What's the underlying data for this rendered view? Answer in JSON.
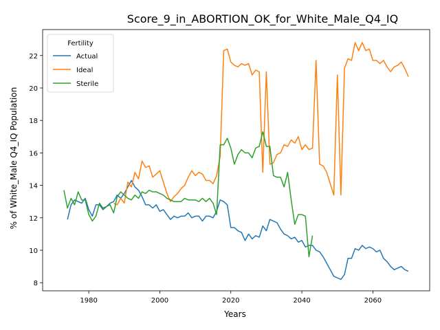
{
  "chart_data": {
    "type": "line",
    "title": "Score_9_in_ABORTION_OK_for_White_Male_Q4_IQ",
    "xlabel": "Years",
    "ylabel": "% of White_Male Q4_IQ Population",
    "xlim": [
      1967,
      2076
    ],
    "ylim": [
      7.5,
      23.6
    ],
    "xticks": [
      1980,
      2000,
      2020,
      2040,
      2060
    ],
    "yticks": [
      8,
      10,
      12,
      14,
      16,
      18,
      20,
      22
    ],
    "grid": false,
    "legend": {
      "title": "Fertility",
      "placement": "upper-left"
    },
    "series": [
      {
        "name": "Actual",
        "color": "#1f77b4",
        "x": [
          1974,
          1975,
          1976,
          1977,
          1978,
          1979,
          1980,
          1981,
          1982,
          1983,
          1984,
          1985,
          1986,
          1987,
          1988,
          1989,
          1990,
          1991,
          1992,
          1993,
          1994,
          1995,
          1996,
          1997,
          1998,
          1999,
          2000,
          2001,
          2002,
          2003,
          2004,
          2005,
          2006,
          2007,
          2008,
          2009,
          2010,
          2011,
          2012,
          2013,
          2014,
          2015,
          2016,
          2017,
          2018,
          2019,
          2020,
          2021,
          2022,
          2023,
          2024,
          2025,
          2026,
          2027,
          2028,
          2029,
          2030,
          2031,
          2032,
          2033,
          2034,
          2035,
          2036,
          2037,
          2038,
          2039,
          2040,
          2041,
          2042,
          2043,
          2044,
          2045,
          2046,
          2047,
          2048,
          2049,
          2050,
          2051,
          2052,
          2053,
          2054,
          2055,
          2056,
          2057,
          2058,
          2059,
          2060,
          2061,
          2062,
          2063,
          2064,
          2065,
          2066,
          2067,
          2068,
          2069,
          2070
        ],
        "y": [
          11.9,
          12.8,
          13.1,
          13.0,
          12.9,
          13.2,
          12.5,
          12.1,
          12.8,
          12.8,
          12.5,
          12.7,
          12.9,
          13.0,
          13.4,
          13.2,
          13.5,
          13.9,
          14.3,
          13.9,
          13.7,
          13.3,
          12.8,
          12.8,
          12.6,
          12.8,
          12.4,
          12.5,
          12.2,
          11.9,
          12.1,
          12.0,
          12.1,
          12.1,
          12.3,
          12.0,
          12.1,
          12.1,
          11.8,
          12.1,
          12.1,
          12.0,
          12.4,
          13.1,
          13.0,
          12.8,
          11.4,
          11.4,
          11.2,
          11.1,
          10.6,
          11.0,
          10.7,
          10.9,
          10.8,
          11.5,
          11.2,
          11.9,
          11.8,
          11.7,
          11.3,
          11.0,
          10.9,
          10.7,
          10.8,
          10.5,
          10.6,
          10.2,
          10.3,
          10.3,
          10.0,
          9.9,
          9.6,
          9.2,
          8.8,
          8.4,
          8.3,
          8.2,
          8.5,
          9.5,
          9.5,
          10.1,
          10.0,
          10.3,
          10.1,
          10.2,
          10.1,
          9.9,
          10.0,
          9.5,
          9.3,
          9.0,
          8.8,
          8.9,
          9.0,
          8.8,
          8.7
        ]
      },
      {
        "name": "Ideal",
        "color": "#ff7f0e",
        "x": [
          1987,
          1988,
          1989,
          1990,
          1991,
          1992,
          1993,
          1994,
          1995,
          1996,
          1997,
          1998,
          1999,
          2000,
          2001,
          2002,
          2003,
          2004,
          2005,
          2006,
          2007,
          2008,
          2009,
          2010,
          2011,
          2012,
          2013,
          2014,
          2015,
          2016,
          2017,
          2018,
          2019,
          2020,
          2021,
          2022,
          2023,
          2024,
          2025,
          2026,
          2027,
          2028,
          2029,
          2030,
          2031,
          2032,
          2033,
          2034,
          2035,
          2036,
          2037,
          2038,
          2039,
          2040,
          2041,
          2042,
          2043,
          2044,
          2045,
          2046,
          2047,
          2048,
          2049,
          2050,
          2051,
          2052,
          2053,
          2054,
          2055,
          2056,
          2057,
          2058,
          2059,
          2060,
          2061,
          2062,
          2063,
          2064,
          2065,
          2066,
          2067,
          2068,
          2069,
          2070
        ],
        "y": [
          12.9,
          12.8,
          13.2,
          12.9,
          14.2,
          13.9,
          14.8,
          14.4,
          15.5,
          15.1,
          15.2,
          14.5,
          14.7,
          14.9,
          14.2,
          13.5,
          13.0,
          13.3,
          13.5,
          13.8,
          14.0,
          14.5,
          14.9,
          14.6,
          14.8,
          14.7,
          14.3,
          14.3,
          14.1,
          14.6,
          15.8,
          22.3,
          22.4,
          21.6,
          21.4,
          21.3,
          21.5,
          21.4,
          21.5,
          20.8,
          21.1,
          21.0,
          14.8,
          21.0,
          15.3,
          15.4,
          15.9,
          16.0,
          16.5,
          16.4,
          16.8,
          16.6,
          17.0,
          16.2,
          16.5,
          16.2,
          16.3,
          21.7,
          15.3,
          15.2,
          14.8,
          14.1,
          13.4,
          20.8,
          13.4,
          21.2,
          21.8,
          21.7,
          22.8,
          22.3,
          22.8,
          22.3,
          22.4,
          21.7,
          21.7,
          21.5,
          21.7,
          21.3,
          21.0,
          21.3,
          21.4,
          21.6,
          21.2,
          20.7
        ]
      },
      {
        "name": "Sterile",
        "color": "#2ca02c",
        "x": [
          1973,
          1974,
          1975,
          1976,
          1977,
          1978,
          1979,
          1980,
          1981,
          1982,
          1983,
          1984,
          1985,
          1986,
          1987,
          1988,
          1989,
          1990,
          1991,
          1992,
          1993,
          1994,
          1995,
          1996,
          1997,
          1998,
          1999,
          2000,
          2001,
          2002,
          2003,
          2004,
          2005,
          2006,
          2007,
          2008,
          2009,
          2010,
          2011,
          2012,
          2013,
          2014,
          2015,
          2016,
          2017,
          2018,
          2019,
          2020,
          2021,
          2022,
          2023,
          2024,
          2025,
          2026,
          2027,
          2028,
          2029,
          2030,
          2031,
          2032,
          2033,
          2034,
          2035,
          2036,
          2037,
          2038,
          2039,
          2040,
          2041,
          2042,
          2043
        ],
        "y": [
          13.7,
          12.6,
          13.2,
          12.8,
          13.6,
          13.1,
          13.1,
          12.2,
          11.8,
          12.1,
          12.9,
          12.6,
          12.7,
          12.8,
          12.3,
          13.3,
          13.6,
          13.4,
          13.2,
          13.1,
          13.4,
          13.2,
          13.6,
          13.5,
          13.7,
          13.6,
          13.6,
          13.5,
          13.4,
          13.2,
          13.1,
          13.0,
          13.0,
          13.0,
          13.2,
          13.1,
          13.1,
          13.1,
          13.0,
          13.2,
          13.0,
          13.2,
          12.9,
          12.2,
          16.5,
          16.5,
          16.9,
          16.3,
          15.3,
          15.9,
          16.2,
          16.0,
          16.0,
          15.7,
          16.3,
          16.4,
          17.3,
          16.4,
          16.4,
          14.6,
          14.5,
          14.5,
          13.9,
          14.8,
          13.1,
          11.6,
          12.2,
          12.2,
          12.1,
          9.6,
          10.9
        ]
      }
    ]
  }
}
